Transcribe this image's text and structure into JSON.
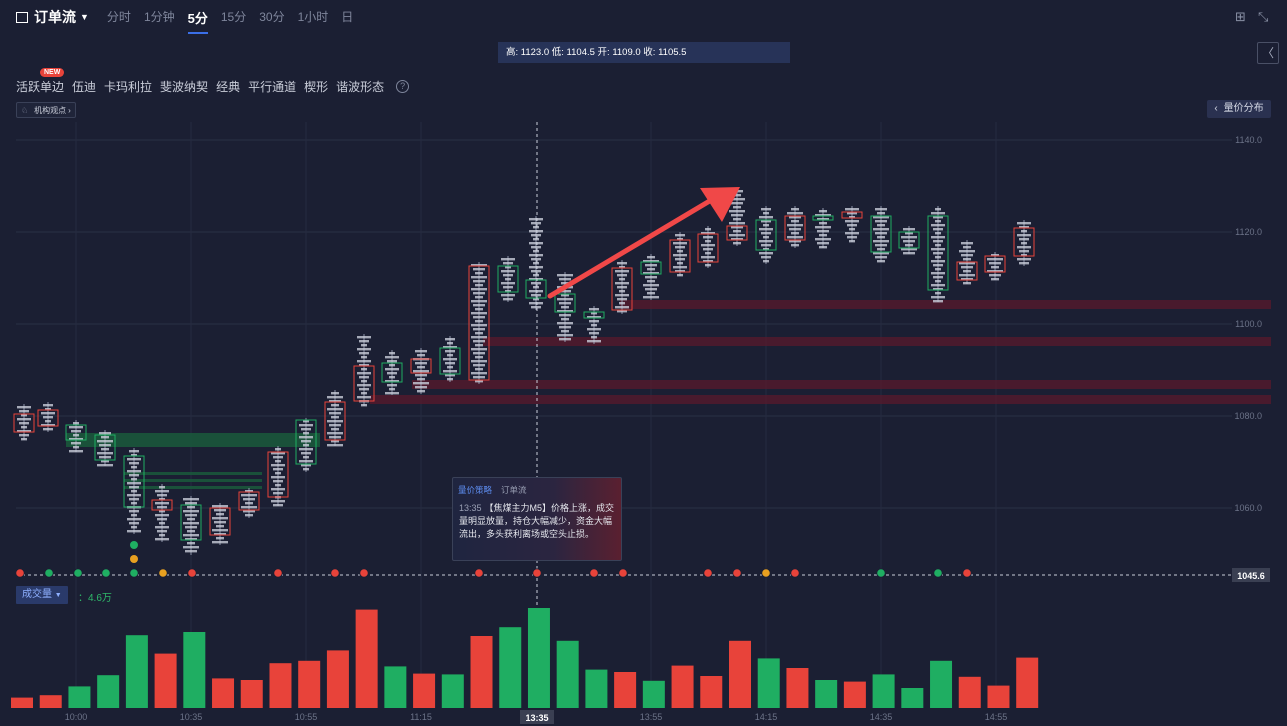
{
  "header": {
    "title": "订单流",
    "periods": [
      "分时",
      "1分钟",
      "5分",
      "15分",
      "30分",
      "1小时",
      "日"
    ],
    "active_period": "5分"
  },
  "info_bar": "高: 1123.0 低: 1104.5 开: 1109.0 收: 1105.5",
  "tools": {
    "items": [
      "活跃单边",
      "伍迪",
      "卡玛利拉",
      "斐波纳契",
      "经典",
      "平行通道",
      "楔形",
      "谐波形态"
    ],
    "new_badge": "NEW",
    "help": "?"
  },
  "institution_button": "机构观点",
  "volume_profile_button": "量价分布",
  "price_axis": {
    "labels": [
      "1140.0",
      "1120.0",
      "1100.0",
      "1080.0",
      "1060.0"
    ],
    "current": "1045.6"
  },
  "time_axis": {
    "labels": [
      "10:00",
      "10:35",
      "10:55",
      "11:15",
      "13:55",
      "14:15",
      "14:35",
      "14:55"
    ],
    "crosshair": "13:35"
  },
  "popup": {
    "tabs": [
      "量价策略",
      "订单流"
    ],
    "time": "13:35",
    "text": "【焦煤主力M5】价格上涨，成交量明显放量，持仓大幅减少，资金大幅流出，多头获利离场或空头止损。"
  },
  "volume": {
    "label": "成交量",
    "value": "：4.6万"
  },
  "colors": {
    "background": "#1b1f33",
    "up": "#e8433a",
    "down": "#1fae62",
    "accent": "#3b6fe8"
  },
  "chart_data": {
    "type": "bar",
    "title": "",
    "series": [
      {
        "values": [
          1.3,
          1.6,
          2.7,
          4.1,
          9.1,
          6.8,
          9.5,
          3.7,
          3.5,
          5.6,
          5.9,
          7.2,
          12.3,
          5.2,
          4.3,
          4.2,
          9.0,
          10.1,
          12.5,
          8.4,
          4.8,
          4.5,
          3.4,
          5.3,
          4.0,
          8.4,
          6.2,
          5.0,
          3.5,
          3.3,
          4.2,
          2.5,
          5.9,
          3.9,
          2.8,
          6.3
        ]
      }
    ],
    "colors": [
      "up",
      "up",
      "down",
      "down",
      "down",
      "up",
      "down",
      "up",
      "up",
      "up",
      "up",
      "up",
      "up",
      "down",
      "up",
      "down",
      "up",
      "down",
      "down",
      "down",
      "down",
      "up",
      "down",
      "up",
      "up",
      "up",
      "down",
      "up",
      "down",
      "up",
      "down",
      "down",
      "down",
      "up",
      "up",
      "up"
    ],
    "ylim": [
      0,
      13
    ]
  }
}
